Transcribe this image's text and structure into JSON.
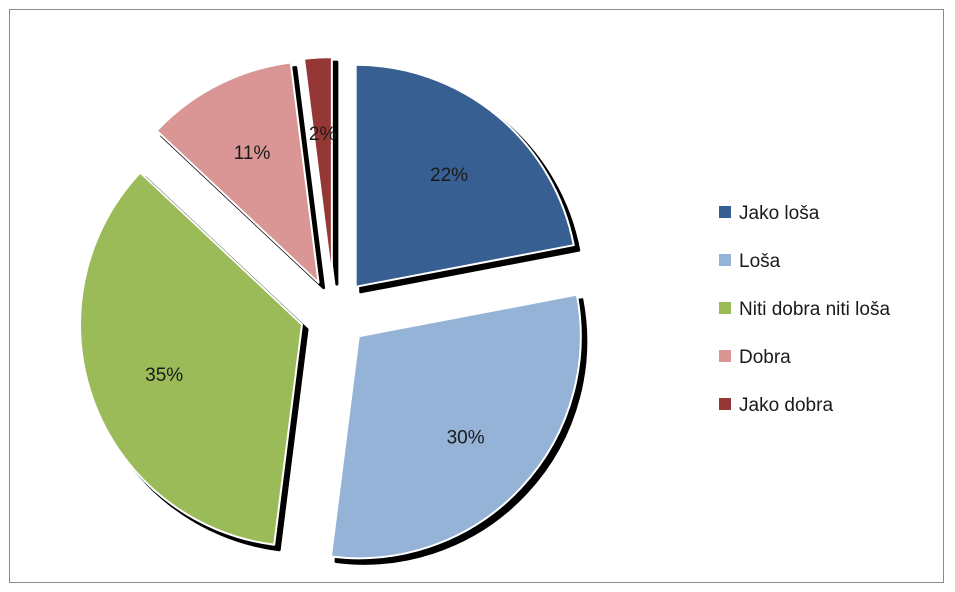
{
  "chart_data": {
    "type": "pie",
    "exploded": true,
    "legend_position": "right",
    "categories": [
      "Jako loša",
      "Loša",
      "Niti dobra niti loša",
      "Dobra",
      "Jako dobra"
    ],
    "values": [
      22,
      30,
      35,
      11,
      2
    ],
    "data_labels": [
      "22%",
      "30%",
      "35%",
      "11%",
      "2%"
    ],
    "colors": [
      "#375f92",
      "#94b3d7",
      "#9bbb59",
      "#d99694",
      "#953735"
    ]
  }
}
